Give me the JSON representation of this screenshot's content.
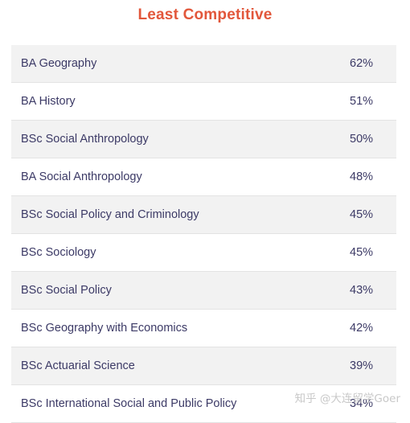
{
  "header": {
    "title": "Least Competitive"
  },
  "table": {
    "rows": [
      {
        "program": "BA Geography",
        "rate": "62%"
      },
      {
        "program": "BA History",
        "rate": "51%"
      },
      {
        "program": "BSc Social Anthropology",
        "rate": "50%"
      },
      {
        "program": "BA Social Anthropology",
        "rate": "48%"
      },
      {
        "program": "BSc Social Policy and Criminology",
        "rate": "45%"
      },
      {
        "program": "BSc Sociology",
        "rate": "45%"
      },
      {
        "program": "BSc Social Policy",
        "rate": "43%"
      },
      {
        "program": "BSc Geography with Economics",
        "rate": "42%"
      },
      {
        "program": "BSc Actuarial Science",
        "rate": "39%"
      },
      {
        "program": "BSc International Social and Public Policy",
        "rate": "34%"
      }
    ]
  },
  "watermark": {
    "text": "知乎 @大连留学Goer"
  },
  "colors": {
    "title": "#e2573b",
    "row_text": "#3c3a66",
    "row_shade": "#f2f2f2"
  }
}
